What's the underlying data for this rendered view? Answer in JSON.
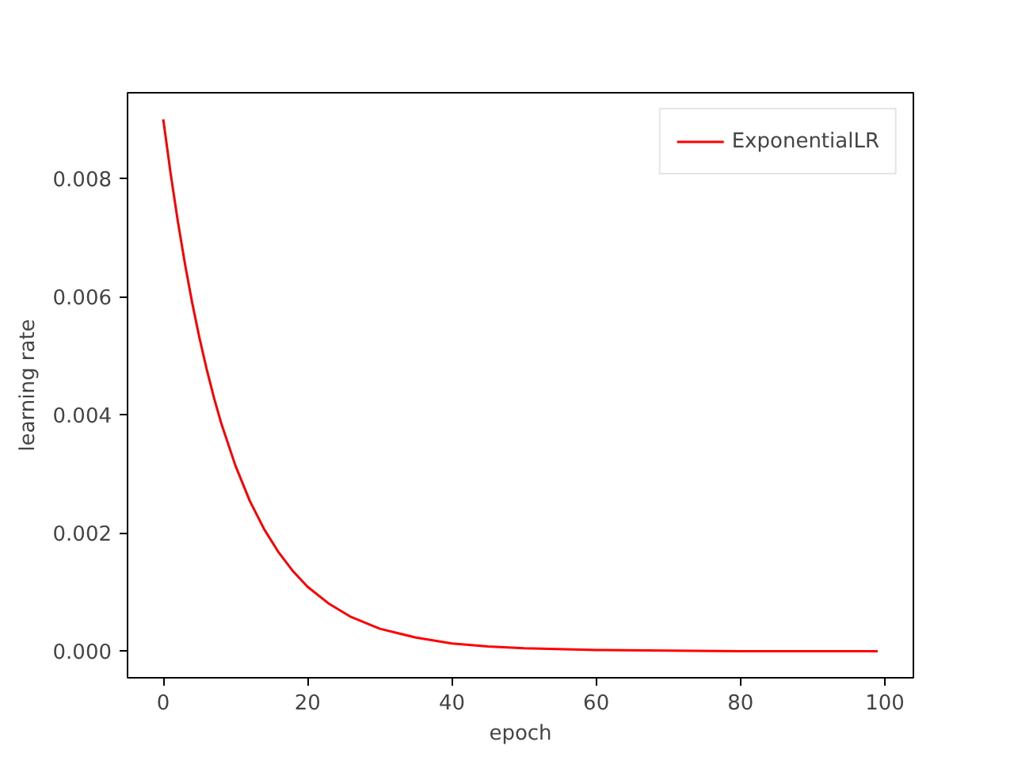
{
  "chart_data": {
    "type": "line",
    "xlabel": "epoch",
    "ylabel": "learning rate",
    "x": [
      0,
      1,
      2,
      3,
      4,
      5,
      6,
      7,
      8,
      10,
      12,
      14,
      16,
      18,
      20,
      23,
      26,
      30,
      35,
      40,
      45,
      50,
      60,
      70,
      80,
      90,
      99
    ],
    "series": [
      {
        "name": "ExponentialLR",
        "color": "#ff0000",
        "values": [
          0.009,
          0.0081,
          0.00729,
          0.00656,
          0.0059,
          0.00531,
          0.00478,
          0.0043,
          0.00387,
          0.00314,
          0.00254,
          0.00206,
          0.00167,
          0.00135,
          0.00109,
          0.0008,
          0.00058,
          0.00038,
          0.00023,
          0.00013,
          8e-05,
          5e-05,
          2e-05,
          1e-05,
          0,
          0,
          0
        ]
      }
    ],
    "xlim": [
      -4.95,
      103.95
    ],
    "ylim": [
      -0.00045,
      0.00945
    ],
    "xticks": [
      0,
      20,
      40,
      60,
      80,
      100
    ],
    "yticks": [
      {
        "value": 0,
        "label": "0.000"
      },
      {
        "value": 0.002,
        "label": "0.002"
      },
      {
        "value": 0.004,
        "label": "0.004"
      },
      {
        "value": 0.006,
        "label": "0.006"
      },
      {
        "value": 0.008,
        "label": "0.008"
      }
    ],
    "grid": false,
    "legend": "top right",
    "marker": "none",
    "line_style": "solid"
  }
}
